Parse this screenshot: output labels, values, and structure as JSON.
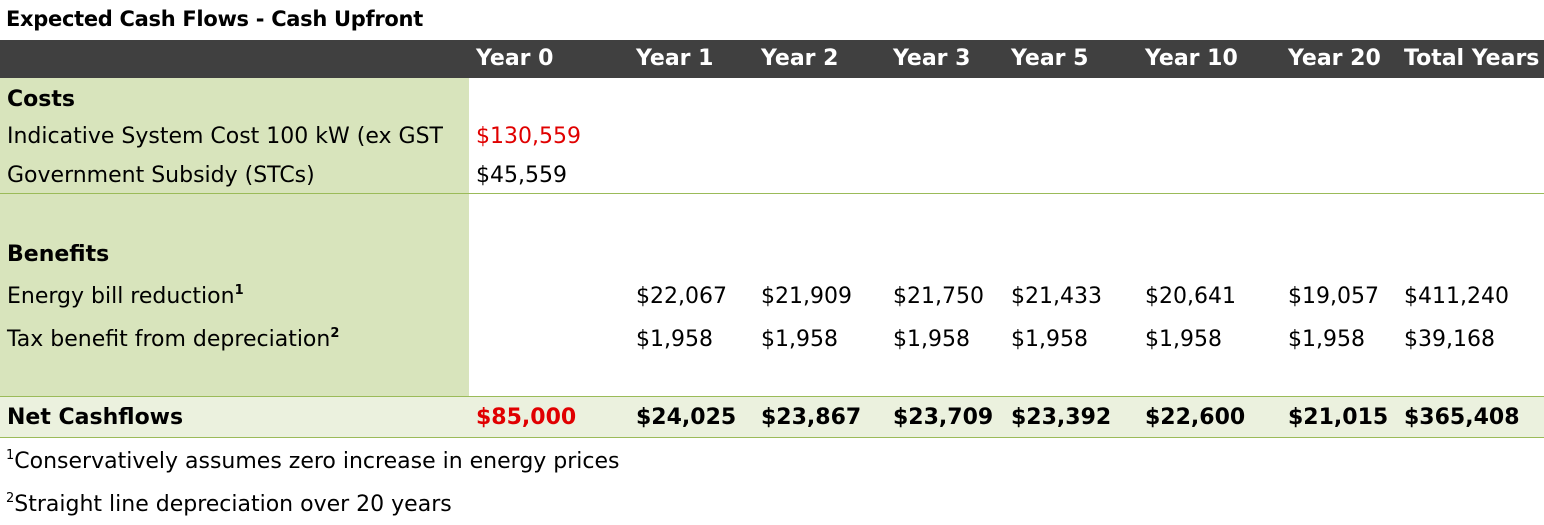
{
  "title": "Expected Cash Flows - Cash Upfront",
  "columns": [
    "Year 0",
    "Year 1",
    "Year 2",
    "Year 3",
    "Year 5",
    "Year 10",
    "Year 20",
    "Total Years"
  ],
  "costs": {
    "heading": "Costs",
    "system_cost": {
      "label": "Indicative System Cost 100 kW (ex GST",
      "year0": "$130,559"
    },
    "subsidy": {
      "label": "Government Subsidy (STCs)",
      "year0": "$45,559"
    }
  },
  "benefits": {
    "heading": "Benefits",
    "energy": {
      "label": "Energy bill reduction",
      "sup": "1",
      "values": [
        "$22,067",
        "$21,909",
        "$21,750",
        "$21,433",
        "$20,641",
        "$19,057",
        "$411,240"
      ]
    },
    "tax": {
      "label": "Tax benefit from depreciation",
      "sup": "2",
      "values": [
        "$1,958",
        "$1,958",
        "$1,958",
        "$1,958",
        "$1,958",
        "$1,958",
        "$39,168"
      ]
    }
  },
  "net": {
    "label": "Net Cashflows",
    "year0": "$85,000",
    "values": [
      "$24,025",
      "$23,867",
      "$23,709",
      "$23,392",
      "$22,600",
      "$21,015",
      "$365,408"
    ]
  },
  "footnotes": [
    {
      "sup": "1",
      "text": "Conservatively assumes zero increase in energy prices"
    },
    {
      "sup": "2",
      "text": "Straight line depreciation over 20 years"
    }
  ],
  "colors": {
    "header_bg": "#404040",
    "label_col_bg": "#d8e4bc",
    "net_row_bg": "#ebf1de",
    "negative_red": "#e00000",
    "rule": "#9bbb59"
  }
}
